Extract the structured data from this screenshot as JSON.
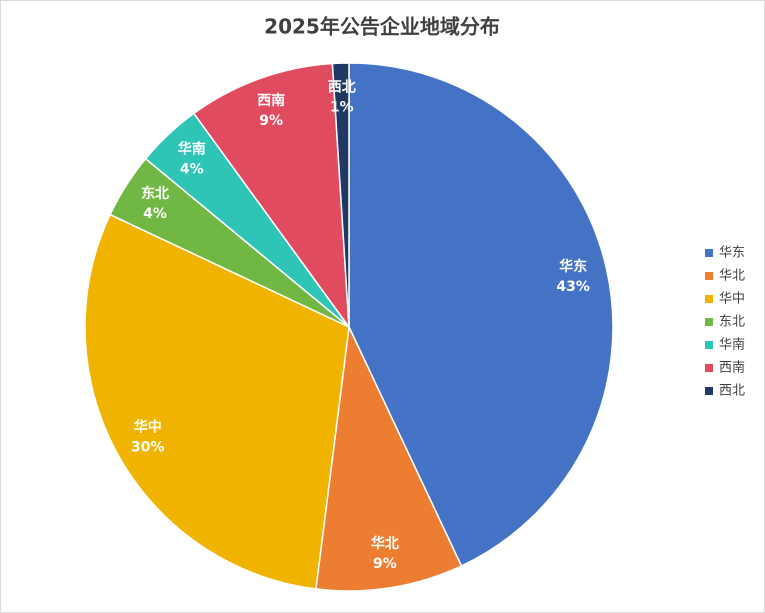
{
  "chart_data": {
    "type": "pie",
    "title": "2025年公告企业地域分布",
    "categories": [
      "华东",
      "华北",
      "华中",
      "东北",
      "华南",
      "西南",
      "西北"
    ],
    "values": [
      43,
      9,
      30,
      4,
      4,
      9,
      1
    ],
    "value_labels": [
      "43%",
      "9%",
      "30%",
      "4%",
      "4%",
      "9%",
      "1%"
    ],
    "colors": [
      "#4472c4",
      "#ed7d31",
      "#f0b400",
      "#70b843",
      "#2ec4b6",
      "#e04b5f",
      "#1f3864"
    ],
    "legend": "right"
  }
}
